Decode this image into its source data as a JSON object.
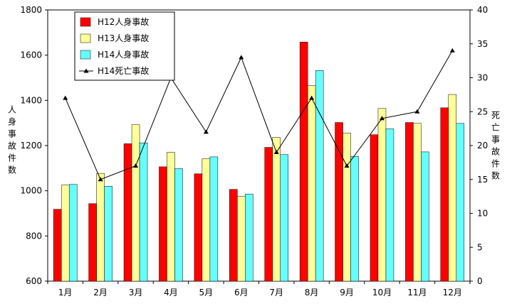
{
  "chart_data": {
    "type": "bar",
    "categories": [
      "1月",
      "2月",
      "3月",
      "4月",
      "5月",
      "6月",
      "7月",
      "8月",
      "9月",
      "10月",
      "11月",
      "12月"
    ],
    "series": [
      {
        "name": "H12人身事故",
        "kind": "bar",
        "axis": "left",
        "color": "#ff0000",
        "values": [
          918,
          943,
          1208,
          1106,
          1075,
          1006,
          1192,
          1658,
          1302,
          1248,
          1302,
          1367
        ]
      },
      {
        "name": "H13人身事故",
        "kind": "bar",
        "axis": "left",
        "color": "#ffff99",
        "values": [
          1025,
          1077,
          1292,
          1170,
          1142,
          975,
          1236,
          1465,
          1255,
          1364,
          1298,
          1426
        ]
      },
      {
        "name": "H14人身事故",
        "kind": "bar",
        "axis": "left",
        "color": "#66ffff",
        "values": [
          1028,
          1020,
          1212,
          1098,
          1150,
          985,
          1160,
          1532,
          1152,
          1274,
          1172,
          1298
        ]
      },
      {
        "name": "H14死亡事故",
        "kind": "line",
        "axis": "right",
        "color": "#000000",
        "marker": "triangle",
        "values": [
          27,
          15,
          17,
          30,
          22,
          33,
          19,
          27,
          17,
          24,
          25,
          34
        ]
      }
    ],
    "ylabel": "人身事故件数",
    "y2label": "死亡事故件数",
    "ylim": [
      600,
      1800
    ],
    "yticks": [
      600,
      800,
      1000,
      1200,
      1400,
      1600,
      1800
    ],
    "y2lim": [
      0,
      40
    ],
    "y2ticks": [
      0,
      5,
      10,
      15,
      20,
      25,
      30,
      35,
      40
    ],
    "legend_position": "top-left",
    "grid": false
  }
}
